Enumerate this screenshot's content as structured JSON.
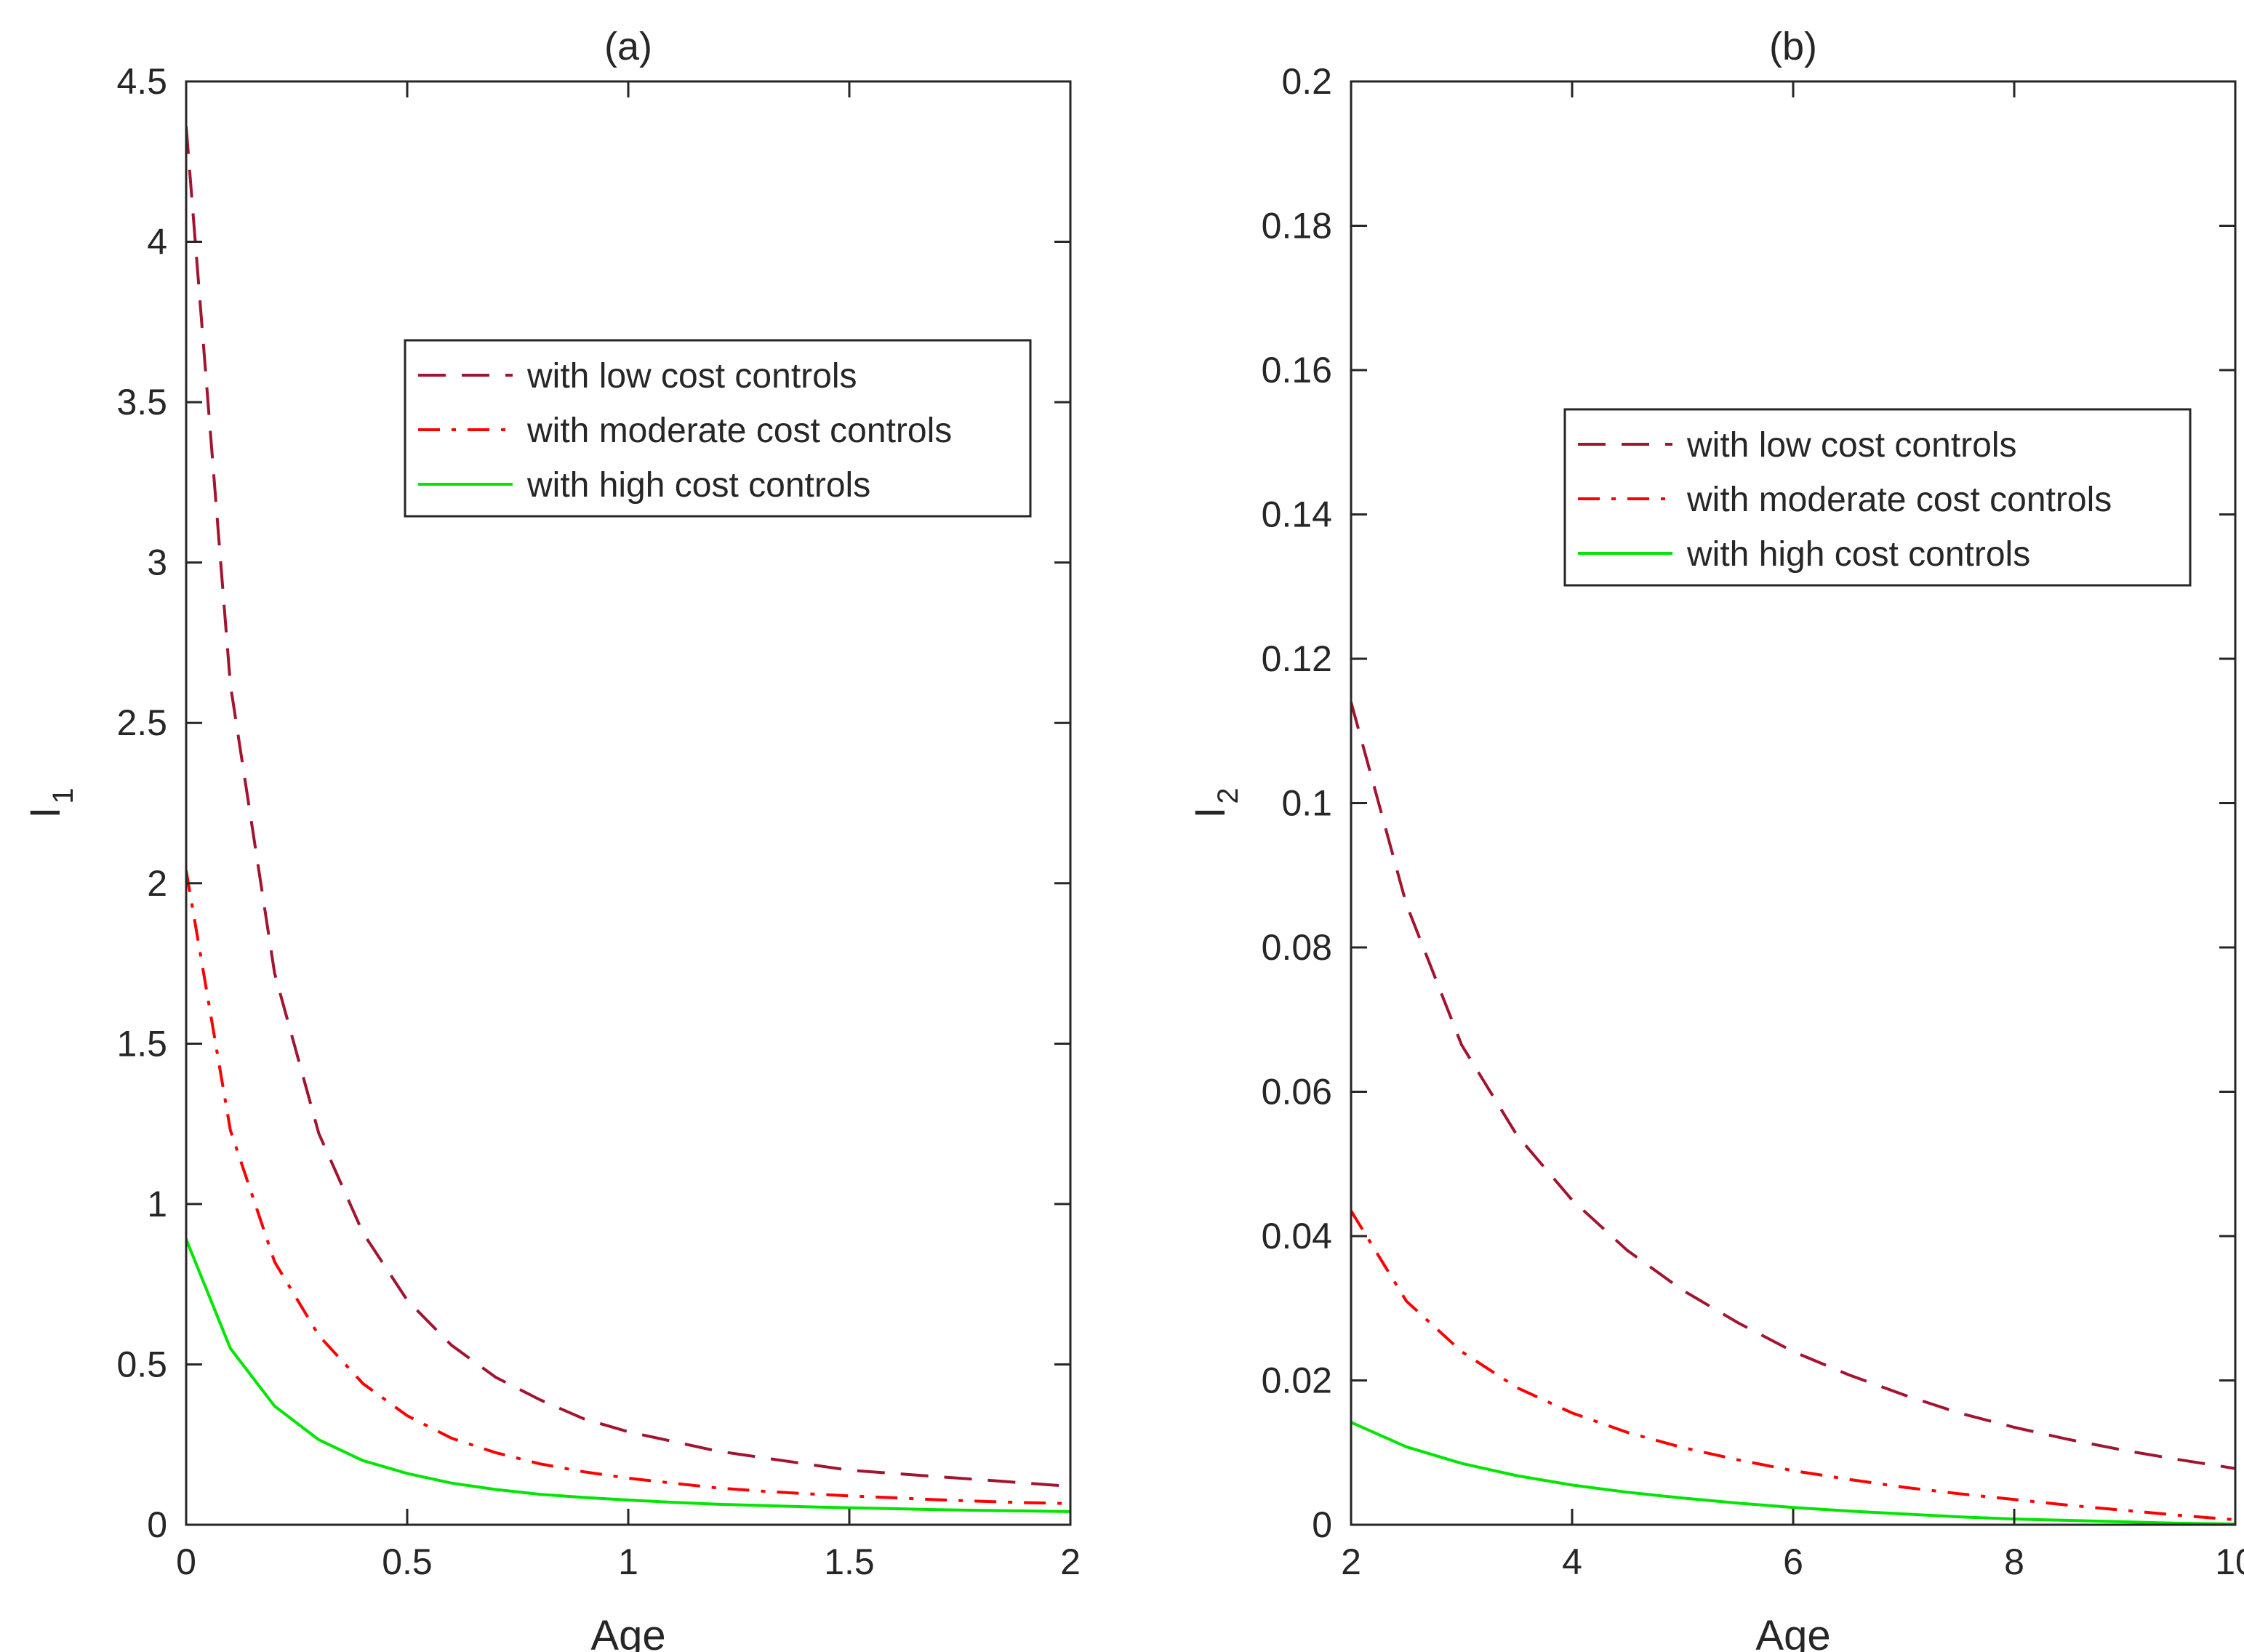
{
  "chart_data": [
    {
      "type": "line",
      "title": "(a)",
      "xlabel": "Age",
      "ylabel_main": "I",
      "ylabel_sub": "1",
      "xlim": [
        0,
        2
      ],
      "ylim": [
        0,
        4.5
      ],
      "xticks": [
        0,
        0.5,
        1,
        1.5,
        2
      ],
      "xtick_labels": [
        "0",
        "0.5",
        "1",
        "1.5",
        "2"
      ],
      "yticks": [
        0,
        0.5,
        1,
        1.5,
        2,
        2.5,
        3,
        3.5,
        4,
        4.5
      ],
      "ytick_labels": [
        "0",
        "0.5",
        "1",
        "1.5",
        "2",
        "2.5",
        "3",
        "3.5",
        "4",
        "4.5"
      ],
      "legend_position": "upper-right",
      "series": [
        {
          "name": "with low cost controls",
          "color": "#A2142F",
          "style": "dashed",
          "x": [
            0,
            0.1,
            0.2,
            0.3,
            0.4,
            0.5,
            0.6,
            0.7,
            0.8,
            0.9,
            1.0,
            1.1,
            1.2,
            1.3,
            1.4,
            1.5,
            1.6,
            1.7,
            1.8,
            1.9,
            2.0
          ],
          "y": [
            4.36,
            2.62,
            1.72,
            1.22,
            0.91,
            0.7,
            0.56,
            0.46,
            0.39,
            0.33,
            0.29,
            0.26,
            0.23,
            0.21,
            0.19,
            0.17,
            0.16,
            0.15,
            0.14,
            0.13,
            0.12
          ]
        },
        {
          "name": "with moderate cost controls",
          "color": "#FF0000",
          "style": "dashdot",
          "x": [
            0,
            0.1,
            0.2,
            0.3,
            0.4,
            0.5,
            0.6,
            0.7,
            0.8,
            0.9,
            1.0,
            1.1,
            1.2,
            1.3,
            1.4,
            1.5,
            1.6,
            1.7,
            1.8,
            1.9,
            2.0
          ],
          "y": [
            2.04,
            1.23,
            0.82,
            0.59,
            0.44,
            0.34,
            0.27,
            0.225,
            0.19,
            0.165,
            0.145,
            0.13,
            0.115,
            0.105,
            0.097,
            0.09,
            0.084,
            0.078,
            0.073,
            0.069,
            0.066
          ]
        },
        {
          "name": "with high cost controls",
          "color": "#00E600",
          "style": "solid",
          "x": [
            0,
            0.1,
            0.2,
            0.3,
            0.4,
            0.5,
            0.6,
            0.7,
            0.8,
            0.9,
            1.0,
            1.1,
            1.2,
            1.3,
            1.4,
            1.5,
            1.6,
            1.7,
            1.8,
            1.9,
            2.0
          ],
          "y": [
            0.89,
            0.55,
            0.37,
            0.265,
            0.2,
            0.16,
            0.13,
            0.11,
            0.095,
            0.085,
            0.077,
            0.07,
            0.064,
            0.06,
            0.056,
            0.053,
            0.05,
            0.047,
            0.045,
            0.043,
            0.041
          ]
        }
      ]
    },
    {
      "type": "line",
      "title": "(b)",
      "xlabel": "Age",
      "ylabel_main": "I",
      "ylabel_sub": "2",
      "xlim": [
        2,
        10
      ],
      "ylim": [
        0,
        0.2
      ],
      "xticks": [
        2,
        4,
        6,
        8,
        10
      ],
      "xtick_labels": [
        "2",
        "4",
        "6",
        "8",
        "10"
      ],
      "yticks": [
        0,
        0.02,
        0.04,
        0.06,
        0.08,
        0.1,
        0.12,
        0.14,
        0.16,
        0.18,
        0.2
      ],
      "ytick_labels": [
        "0",
        "0.02",
        "0.04",
        "0.06",
        "0.08",
        "0.1",
        "0.12",
        "0.14",
        "0.16",
        "0.18",
        "0.2"
      ],
      "legend_position": "upper-right",
      "series": [
        {
          "name": "with low cost controls",
          "color": "#A2142F",
          "style": "dashed",
          "x": [
            2,
            2.5,
            3,
            3.5,
            4,
            4.5,
            5,
            5.5,
            6,
            6.5,
            7,
            7.5,
            8,
            8.5,
            9,
            9.5,
            10
          ],
          "y": [
            0.114,
            0.086,
            0.0665,
            0.054,
            0.045,
            0.038,
            0.0325,
            0.028,
            0.024,
            0.0208,
            0.018,
            0.0155,
            0.0135,
            0.0118,
            0.0103,
            0.009,
            0.0078
          ]
        },
        {
          "name": "with moderate cost controls",
          "color": "#FF0000",
          "style": "dashdot",
          "x": [
            2,
            2.5,
            3,
            3.5,
            4,
            4.5,
            5,
            5.5,
            6,
            6.5,
            7,
            7.5,
            8,
            8.5,
            9,
            9.5,
            10
          ],
          "y": [
            0.0435,
            0.031,
            0.024,
            0.019,
            0.0155,
            0.0128,
            0.0107,
            0.009,
            0.0075,
            0.0063,
            0.0052,
            0.0043,
            0.0035,
            0.0027,
            0.002,
            0.0013,
            0.0007
          ]
        },
        {
          "name": "with high cost controls",
          "color": "#00E600",
          "style": "solid",
          "x": [
            2,
            2.5,
            3,
            3.5,
            4,
            4.5,
            5,
            5.5,
            6,
            6.5,
            7,
            7.5,
            8,
            8.5,
            9,
            9.5,
            10
          ],
          "y": [
            0.0142,
            0.0108,
            0.0085,
            0.0068,
            0.0055,
            0.0045,
            0.0037,
            0.003,
            0.0024,
            0.0019,
            0.0015,
            0.0011,
            0.0008,
            0.0006,
            0.0004,
            0.0002,
            0.0001
          ]
        }
      ]
    }
  ]
}
